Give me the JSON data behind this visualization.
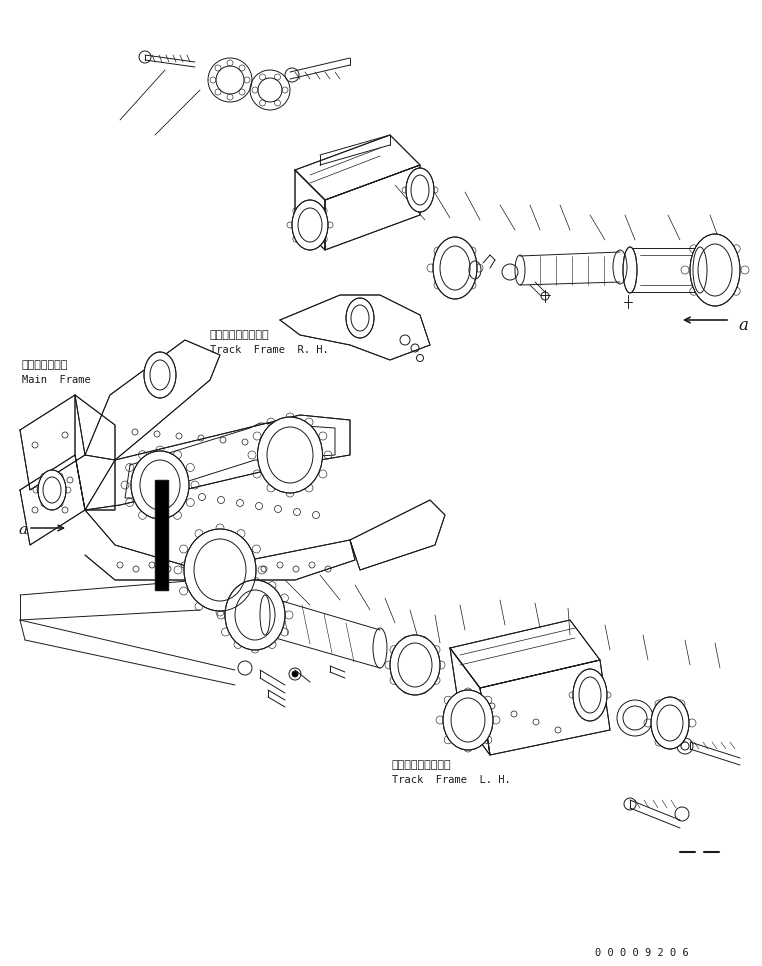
{
  "background_color": "#ffffff",
  "line_color": "#1a1a1a",
  "line_width": 0.7,
  "labels": {
    "track_frame_rh_jp": "トラックフレーム右",
    "track_frame_rh_en": "Track  Frame  R. H.",
    "main_frame_jp": "メインフレーム",
    "main_frame_en": "Main  Frame",
    "track_frame_lh_jp": "トラックフレーム左",
    "track_frame_lh_en": "Track  Frame  L. H.",
    "part_number": "0 0 0 0 9 2 0 6",
    "label_a": "a"
  },
  "figsize": [
    7.62,
    9.66
  ],
  "dpi": 100
}
